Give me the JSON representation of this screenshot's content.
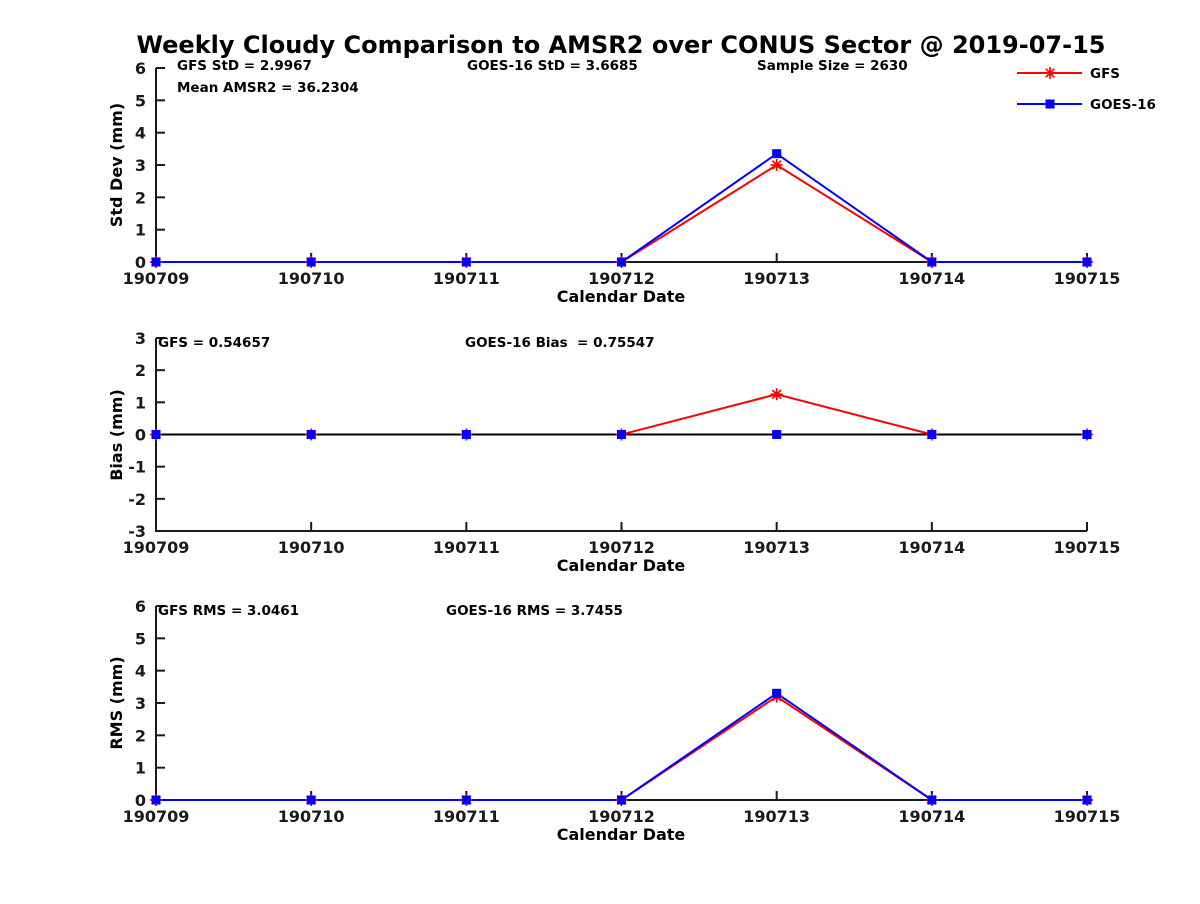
{
  "title": "Weekly Cloudy Comparison to AMSR2 over CONUS Sector @ 2019-07-15",
  "colors": {
    "axis": "#1a1a1a",
    "gfs": "#ff0000",
    "goes16": "#0000ff",
    "zero_line": "#000000"
  },
  "legend": {
    "position": "top-right",
    "items": [
      {
        "label": "GFS",
        "color": "#ff0000",
        "marker": "asterisk"
      },
      {
        "label": "GOES-16",
        "color": "#0000ff",
        "marker": "square"
      }
    ]
  },
  "chart_data": [
    {
      "type": "line",
      "ylabel": "Std Dev (mm)",
      "xlabel": "Calendar Date",
      "categories": [
        "190709",
        "190710",
        "190711",
        "190712",
        "190713",
        "190714",
        "190715"
      ],
      "ylim": [
        0,
        6
      ],
      "yticks": [
        0,
        1,
        2,
        3,
        4,
        5,
        6
      ],
      "grid": false,
      "zero_line": false,
      "series": [
        {
          "name": "GFS",
          "color": "#ff0000",
          "marker": "asterisk",
          "values": [
            0,
            0,
            0,
            0,
            3.0,
            0,
            0
          ]
        },
        {
          "name": "GOES-16",
          "color": "#0000ff",
          "marker": "square",
          "values": [
            0,
            0,
            0,
            0,
            3.35,
            0,
            0
          ]
        }
      ],
      "annotations": {
        "left1": "GFS StD = 2.9967",
        "left2": "Mean AMSR2 = 36.2304",
        "center": "GOES-16 StD = 3.6685",
        "right": "Sample Size = 2630"
      }
    },
    {
      "type": "line",
      "ylabel": "Bias (mm)",
      "xlabel": "Calendar Date",
      "categories": [
        "190709",
        "190710",
        "190711",
        "190712",
        "190713",
        "190714",
        "190715"
      ],
      "ylim": [
        -3,
        3
      ],
      "yticks": [
        -3,
        -2,
        -1,
        0,
        1,
        2,
        3
      ],
      "grid": false,
      "zero_line": true,
      "series": [
        {
          "name": "GFS",
          "color": "#ff0000",
          "marker": "asterisk",
          "values": [
            0,
            0,
            0,
            0,
            1.25,
            0,
            0
          ]
        },
        {
          "name": "GOES-16",
          "color": "#0000ff",
          "marker": "square",
          "values": [
            0,
            0,
            0,
            0,
            0,
            0,
            0
          ]
        }
      ],
      "annotations": {
        "left1": "GFS = 0.54657",
        "center": "GOES-16 Bias  = 0.75547"
      }
    },
    {
      "type": "line",
      "ylabel": "RMS (mm)",
      "xlabel": "Calendar Date",
      "categories": [
        "190709",
        "190710",
        "190711",
        "190712",
        "190713",
        "190714",
        "190715"
      ],
      "ylim": [
        0,
        6
      ],
      "yticks": [
        0,
        1,
        2,
        3,
        4,
        5,
        6
      ],
      "grid": false,
      "zero_line": false,
      "series": [
        {
          "name": "GFS",
          "color": "#ff0000",
          "marker": "asterisk",
          "values": [
            0,
            0,
            0,
            0,
            3.2,
            0,
            0
          ]
        },
        {
          "name": "GOES-16",
          "color": "#0000ff",
          "marker": "square",
          "values": [
            0,
            0,
            0,
            0,
            3.3,
            0,
            0
          ]
        }
      ],
      "annotations": {
        "left1": "GFS RMS = 3.0461",
        "center": "GOES-16 RMS = 3.7455"
      }
    }
  ]
}
